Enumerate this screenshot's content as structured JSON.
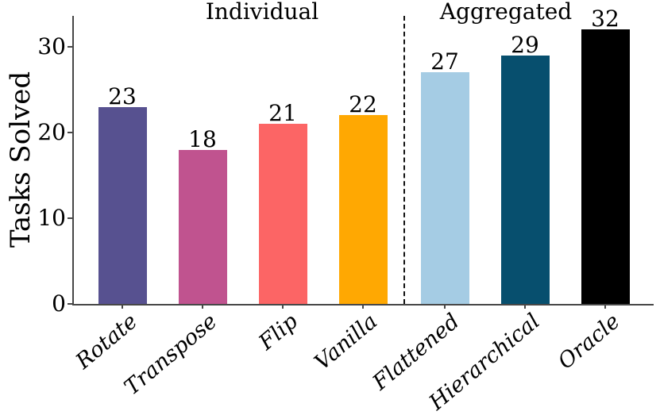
{
  "chart_data": {
    "type": "bar",
    "title": "",
    "xlabel": "",
    "ylabel": "Tasks Solved",
    "categories": [
      "Rotate",
      "Transpose",
      "Flip",
      "Vanilla",
      "Flattened",
      "Hierarchical",
      "Oracle"
    ],
    "values": [
      23,
      18,
      21,
      22,
      27,
      29,
      32
    ],
    "value_labels": [
      "23",
      "18",
      "21",
      "22",
      "27",
      "29",
      "32"
    ],
    "bar_colors": [
      "#575190",
      "#C0538F",
      "#FC6565",
      "#FFA802",
      "#A5CCE4",
      "#074F6E",
      "#000000"
    ],
    "y_ticks": [
      0,
      10,
      20,
      30
    ],
    "y_tick_labels": [
      "0",
      "10",
      "20",
      "30"
    ],
    "ylim": [
      0,
      33.6
    ],
    "grid": false,
    "legend": false,
    "groups": [
      {
        "label": "Individual",
        "categories": [
          "Rotate",
          "Transpose",
          "Flip",
          "Vanilla"
        ]
      },
      {
        "label": "Aggregated",
        "categories": [
          "Flattened",
          "Hierarchical",
          "Oracle"
        ]
      }
    ],
    "separator": {
      "style": "dashed-vertical-line",
      "between": [
        "Vanilla",
        "Flattened"
      ],
      "color": "#111111"
    }
  },
  "colors": {
    "background": "#ffffff",
    "axis": "#474747",
    "text": "#000000"
  }
}
